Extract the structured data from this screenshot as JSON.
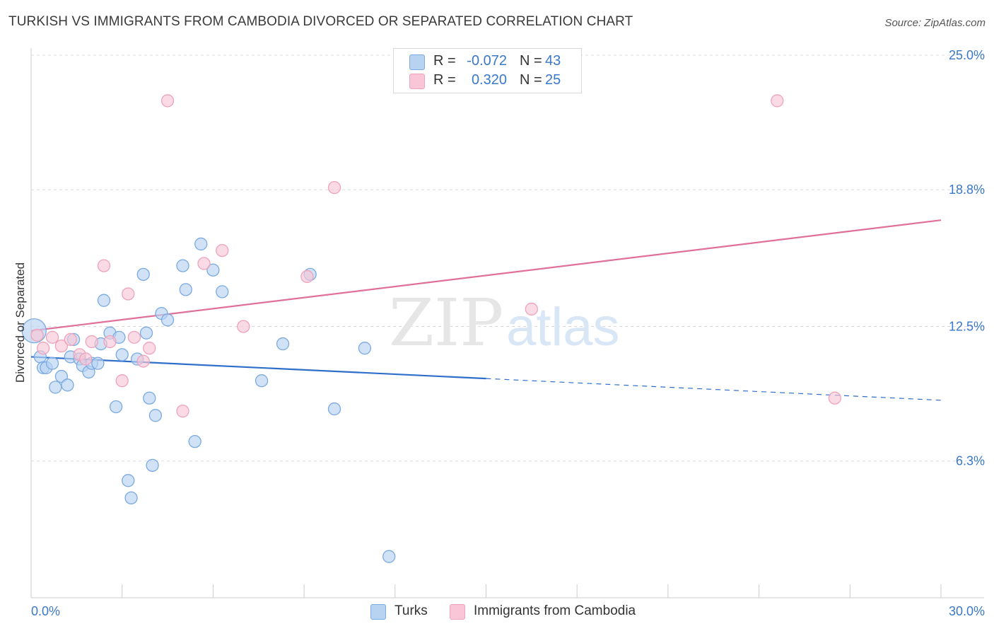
{
  "header": {
    "title": "TURKISH VS IMMIGRANTS FROM CAMBODIA DIVORCED OR SEPARATED CORRELATION CHART",
    "source": "Source: ZipAtlas.com"
  },
  "colors": {
    "blue_fill": "#b8d2f2",
    "blue_stroke": "#7aaae0",
    "blue_line": "#2f6fca",
    "pink_fill": "#f8c6d6",
    "pink_stroke": "#eea3bb",
    "pink_line": "#e07099",
    "tick_label": "#3a78c9",
    "grid": "#dcdcdc"
  },
  "stats_legend": {
    "rows": [
      {
        "r_label": "R =",
        "r_value": "-0.072",
        "n_label": "N =",
        "n_value": "43"
      },
      {
        "r_label": "R =",
        "r_value": "0.320",
        "n_label": "N =",
        "n_value": "25"
      }
    ]
  },
  "series_legend": {
    "items": [
      {
        "label": "Turks"
      },
      {
        "label": "Immigrants from Cambodia"
      }
    ]
  },
  "watermark": {
    "zip": "ZIP",
    "atlas": "atlas"
  },
  "chart_data": {
    "type": "scatter",
    "ylabel": "Divorced or Separated",
    "xlim": [
      0,
      30
    ],
    "ylim": [
      0,
      25
    ],
    "x_tick_labels": [
      {
        "value": 0,
        "label": "0.0%"
      },
      {
        "value": 30,
        "label": "30.0%"
      }
    ],
    "y_tick_labels": [
      {
        "value": 25.0,
        "label": "25.0%"
      },
      {
        "value": 18.8,
        "label": "18.8%"
      },
      {
        "value": 12.5,
        "label": "12.5%"
      },
      {
        "value": 6.3,
        "label": "6.3%"
      }
    ],
    "grid": "horizontal dashed",
    "legend_position": "bottom",
    "series": [
      {
        "name": "Turks",
        "color": "#b8d2f2",
        "points": [
          [
            0.1,
            12.3
          ],
          [
            0.3,
            11.1
          ],
          [
            0.4,
            10.6
          ],
          [
            0.5,
            10.6
          ],
          [
            0.7,
            10.8
          ],
          [
            0.8,
            9.7
          ],
          [
            1.0,
            10.2
          ],
          [
            1.2,
            9.8
          ],
          [
            1.3,
            11.1
          ],
          [
            1.4,
            11.9
          ],
          [
            1.6,
            11.0
          ],
          [
            1.7,
            10.7
          ],
          [
            1.9,
            10.4
          ],
          [
            2.0,
            10.8
          ],
          [
            2.2,
            10.8
          ],
          [
            2.3,
            11.7
          ],
          [
            2.4,
            13.7
          ],
          [
            2.6,
            12.2
          ],
          [
            2.8,
            8.8
          ],
          [
            2.9,
            12.0
          ],
          [
            3.0,
            11.2
          ],
          [
            3.2,
            5.4
          ],
          [
            3.3,
            4.6
          ],
          [
            3.5,
            11.0
          ],
          [
            3.7,
            14.9
          ],
          [
            3.8,
            12.2
          ],
          [
            3.9,
            9.2
          ],
          [
            4.0,
            6.1
          ],
          [
            4.1,
            8.4
          ],
          [
            4.3,
            13.1
          ],
          [
            4.5,
            12.8
          ],
          [
            5.0,
            15.3
          ],
          [
            5.1,
            14.2
          ],
          [
            5.4,
            7.2
          ],
          [
            5.6,
            16.3
          ],
          [
            6.0,
            15.1
          ],
          [
            6.3,
            14.1
          ],
          [
            7.6,
            10.0
          ],
          [
            8.3,
            11.7
          ],
          [
            9.2,
            14.9
          ],
          [
            10.0,
            8.7
          ],
          [
            11.0,
            11.5
          ],
          [
            11.8,
            1.9
          ]
        ],
        "trend": {
          "x0": 0.0,
          "y0": 11.1,
          "x1": 15.0,
          "y1": 10.1,
          "dashed_to_x": 30.0,
          "dashed_to_y": 9.1
        }
      },
      {
        "name": "Immigrants from Cambodia",
        "color": "#f8c6d6",
        "points": [
          [
            0.4,
            11.5
          ],
          [
            0.7,
            12.0
          ],
          [
            1.0,
            11.6
          ],
          [
            1.3,
            11.9
          ],
          [
            1.6,
            11.2
          ],
          [
            1.8,
            11.0
          ],
          [
            2.0,
            11.8
          ],
          [
            2.4,
            15.3
          ],
          [
            2.6,
            11.8
          ],
          [
            3.0,
            10.0
          ],
          [
            3.2,
            14.0
          ],
          [
            3.4,
            12.0
          ],
          [
            3.7,
            10.9
          ],
          [
            3.9,
            11.5
          ],
          [
            4.5,
            22.9
          ],
          [
            5.0,
            8.6
          ],
          [
            5.7,
            15.4
          ],
          [
            6.3,
            16.0
          ],
          [
            7.0,
            12.5
          ],
          [
            9.1,
            14.8
          ],
          [
            10.0,
            18.9
          ],
          [
            16.5,
            13.3
          ],
          [
            24.6,
            22.9
          ],
          [
            26.5,
            9.2
          ],
          [
            0.2,
            12.1
          ]
        ],
        "trend": {
          "x0": 0.0,
          "y0": 12.3,
          "x1": 30.0,
          "y1": 17.4
        }
      }
    ]
  }
}
